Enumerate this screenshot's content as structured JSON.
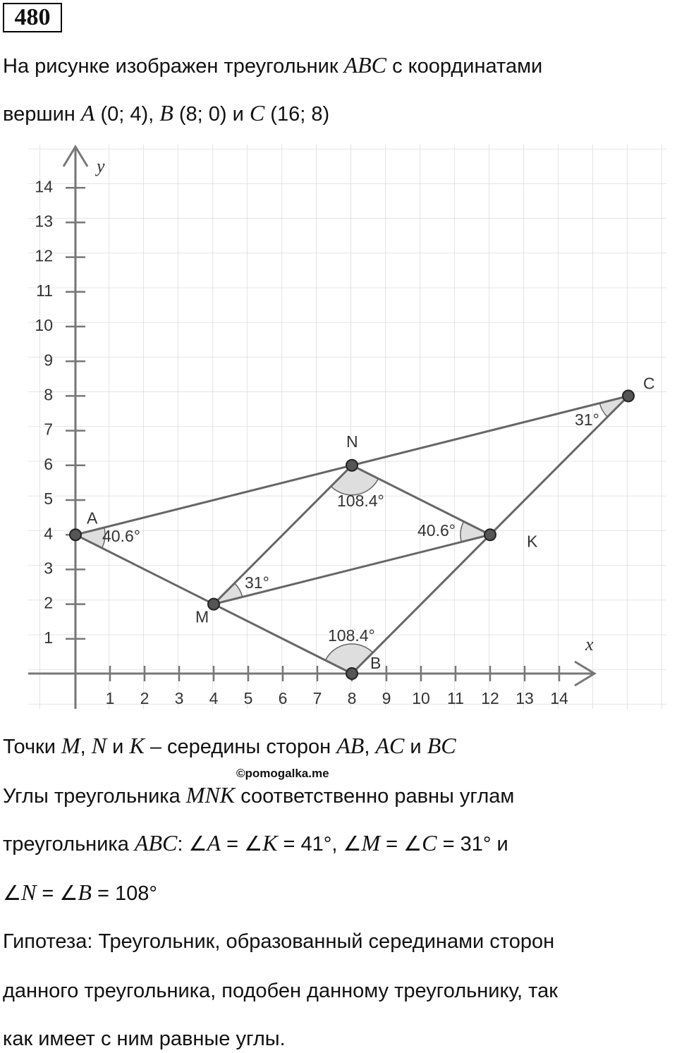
{
  "problem_number": "480",
  "text_top": [
    [
      "На рисунке изображен треугольник ",
      "ABC",
      " с координатами"
    ],
    [
      "вершин ",
      "A",
      " (0; 4), ",
      "B",
      " (8; 0) и ",
      "C",
      " (16; 8)"
    ]
  ],
  "figure": {
    "x_label": "x",
    "y_label": "y",
    "xticks": [
      1,
      2,
      3,
      4,
      5,
      6,
      7,
      8,
      9,
      10,
      11,
      12,
      13,
      14
    ],
    "yticks": [
      1,
      2,
      3,
      4,
      5,
      6,
      7,
      8,
      9,
      10,
      11,
      12,
      13,
      14
    ],
    "points": [
      {
        "name": "A",
        "x": 0,
        "y": 4,
        "angle": "40.6°"
      },
      {
        "name": "B",
        "x": 8,
        "y": 0,
        "angle": "108.4°"
      },
      {
        "name": "C",
        "x": 16,
        "y": 8,
        "angle": "31°"
      },
      {
        "name": "M",
        "x": 4,
        "y": 2,
        "angle": "31°"
      },
      {
        "name": "N",
        "x": 8,
        "y": 6,
        "angle": "108.4°"
      },
      {
        "name": "K",
        "x": 12,
        "y": 4,
        "angle": "40.6°"
      }
    ]
  },
  "text_bottom": [
    [
      "Точки ",
      "M",
      ", ",
      "N",
      " и ",
      "K",
      " – середины сторон ",
      "AB",
      ", ",
      "AC",
      " и ",
      "BC"
    ],
    [
      "Углы треугольника ",
      "MNK",
      " соответственно равны углам"
    ],
    [
      "треугольника ",
      "ABC",
      ": ∠",
      "A",
      " = ∠",
      "K",
      " = 41°, ∠",
      "M",
      " = ∠",
      "C",
      " = 31° и"
    ],
    [
      "∠",
      "N",
      " = ∠",
      "B",
      " = 108°"
    ],
    [
      "Гипотеза: Треугольник, образованный серединами сторон"
    ],
    [
      "данного треугольника, подобен данному треугольнику, так"
    ],
    [
      "как имеет с ним равные углы."
    ]
  ],
  "watermark": "©pomogalka.me"
}
